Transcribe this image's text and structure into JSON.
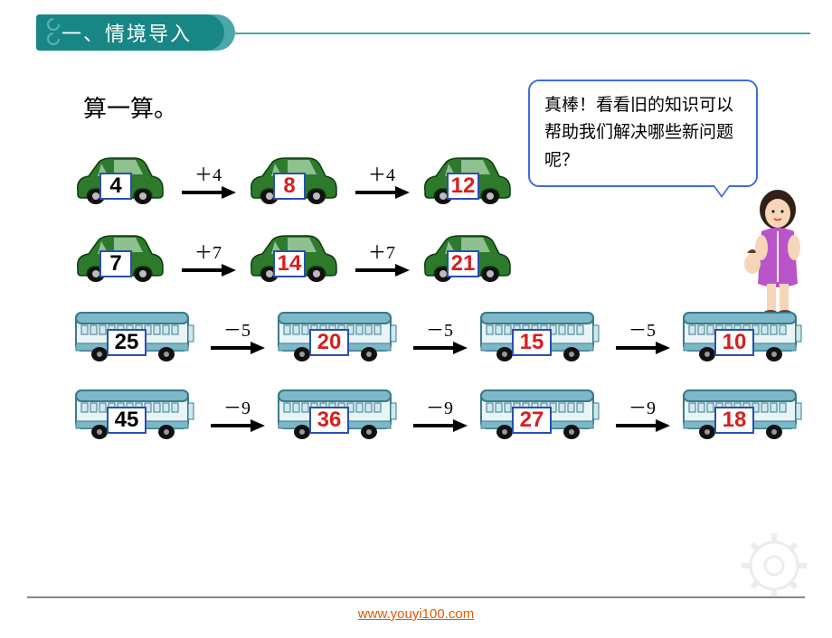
{
  "header": {
    "title": "一、情境导入"
  },
  "subtitle": "算一算。",
  "speech": "真棒！看看旧的知识可以帮助我们解决哪些新问题呢？",
  "footer_link": "www.youyi100.com",
  "colors": {
    "header_teal": "#198686",
    "header_teal_light": "#4aa8a8",
    "bubble_border": "#3d6dd8",
    "value_border": "#2a4fb0",
    "result_red": "#d81e1e",
    "car_green": "#2d7a2d",
    "bus_blue": "#7db8c8",
    "footer_link": "#e05a00",
    "arrow_color": "#000000"
  },
  "fonts": {
    "header_size": 22,
    "subtitle_size": 26,
    "bubble_size": 19,
    "value_size": 24,
    "op_size": 20
  },
  "rows": [
    {
      "vehicle": "car",
      "steps": [
        {
          "value": 4
        },
        {
          "op": "＋4",
          "value": 8
        },
        {
          "op": "＋4",
          "value": 12
        }
      ]
    },
    {
      "vehicle": "car",
      "steps": [
        {
          "value": 7
        },
        {
          "op": "＋7",
          "value": 14
        },
        {
          "op": "＋7",
          "value": 21
        }
      ]
    },
    {
      "vehicle": "bus",
      "steps": [
        {
          "value": 25
        },
        {
          "op": "－5",
          "value": 20
        },
        {
          "op": "－5",
          "value": 15
        },
        {
          "op": "－5",
          "value": 10
        }
      ]
    },
    {
      "vehicle": "bus",
      "steps": [
        {
          "value": 45
        },
        {
          "op": "－9",
          "value": 36
        },
        {
          "op": "－9",
          "value": 27
        },
        {
          "op": "－9",
          "value": 18
        }
      ]
    }
  ]
}
